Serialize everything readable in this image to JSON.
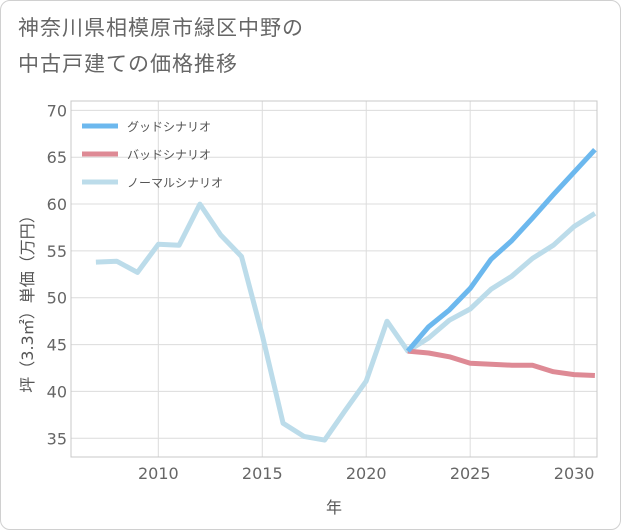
{
  "chart_data": {
    "type": "line",
    "title_line1": "神奈川県相模原市緑区中野の",
    "title_line2": "中古戸建ての価格推移",
    "xlabel": "年",
    "ylabel": "坪（3.3㎡）単価（万円）",
    "xlim": [
      2005.8,
      2031.1
    ],
    "ylim": [
      33,
      71
    ],
    "xticks": [
      2010,
      2015,
      2020,
      2025,
      2030
    ],
    "yticks": [
      35,
      40,
      45,
      50,
      55,
      60,
      65,
      70
    ],
    "grid": true,
    "legend_position": "top-left",
    "series": [
      {
        "name": "グッドシナリオ",
        "color": "#6cb8ee",
        "x": [
          2022,
          2023,
          2024,
          2025,
          2026,
          2027,
          2028,
          2029,
          2030,
          2031
        ],
        "values": [
          44.3,
          46.9,
          48.7,
          51.0,
          54.1,
          56.1,
          58.5,
          61.0,
          63.4,
          65.8
        ]
      },
      {
        "name": "バッドシナリオ",
        "color": "#de8a95",
        "x": [
          2022,
          2023,
          2024,
          2025,
          2026,
          2027,
          2028,
          2029,
          2030,
          2031
        ],
        "values": [
          44.3,
          44.1,
          43.7,
          43.0,
          42.9,
          42.8,
          42.8,
          42.1,
          41.8,
          41.7
        ]
      },
      {
        "name": "ノーマルシナリオ",
        "color": "#bcdcea",
        "x": [
          2007,
          2008,
          2009,
          2010,
          2011,
          2012,
          2013,
          2014,
          2015,
          2016,
          2017,
          2018,
          2019,
          2020,
          2021,
          2022,
          2023,
          2024,
          2025,
          2026,
          2027,
          2028,
          2029,
          2030,
          2031
        ],
        "values": [
          53.8,
          53.9,
          52.7,
          55.7,
          55.6,
          60.0,
          56.7,
          54.4,
          46.0,
          36.6,
          35.2,
          34.8,
          38.0,
          41.1,
          47.5,
          44.3,
          45.7,
          47.6,
          48.8,
          50.9,
          52.3,
          54.2,
          55.6,
          57.6,
          59.0
        ]
      }
    ]
  }
}
